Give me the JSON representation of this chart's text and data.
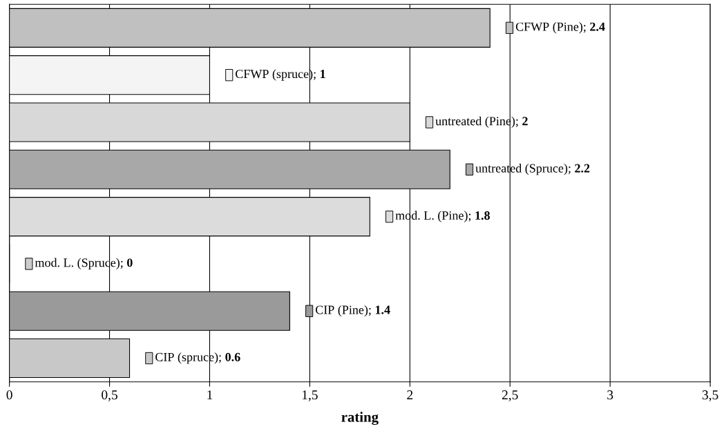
{
  "chart_data": {
    "type": "bar",
    "orientation": "horizontal",
    "xlabel": "rating",
    "categories": [
      null,
      null,
      null,
      null,
      null,
      null,
      null,
      null
    ],
    "values": [
      2.4,
      1,
      2,
      2.2,
      1.8,
      0,
      1.4,
      0.6
    ],
    "value_labels": [
      "CFWP (Pine); 2.4",
      "CFWP (spruce); 1",
      "untreated (Pine); 2",
      "untreated (Spruce); 2.2",
      "mod. L. (Pine); 1.8",
      "mod. L. (Spruce); 0",
      "CIP (Pine); 1.4",
      "CIP (spruce); 0.6"
    ],
    "colors": [
      "#c0c0c0",
      "#f4f4f4",
      "#d8d8d8",
      "#a8a8a8",
      "#dcdcdc",
      "#cccccc",
      "#9a9a9a",
      "#c8c8c8"
    ],
    "xlim": [
      0,
      3.5
    ],
    "xticks": [
      0,
      {
        "value": 0.5,
        "label": "0,5"
      },
      1,
      {
        "value": 1.5,
        "label": "1,5"
      },
      2,
      {
        "value": 2.5,
        "label": "2,5"
      },
      3,
      {
        "value": 3.5,
        "label": "3,5"
      }
    ],
    "grid": "x"
  }
}
